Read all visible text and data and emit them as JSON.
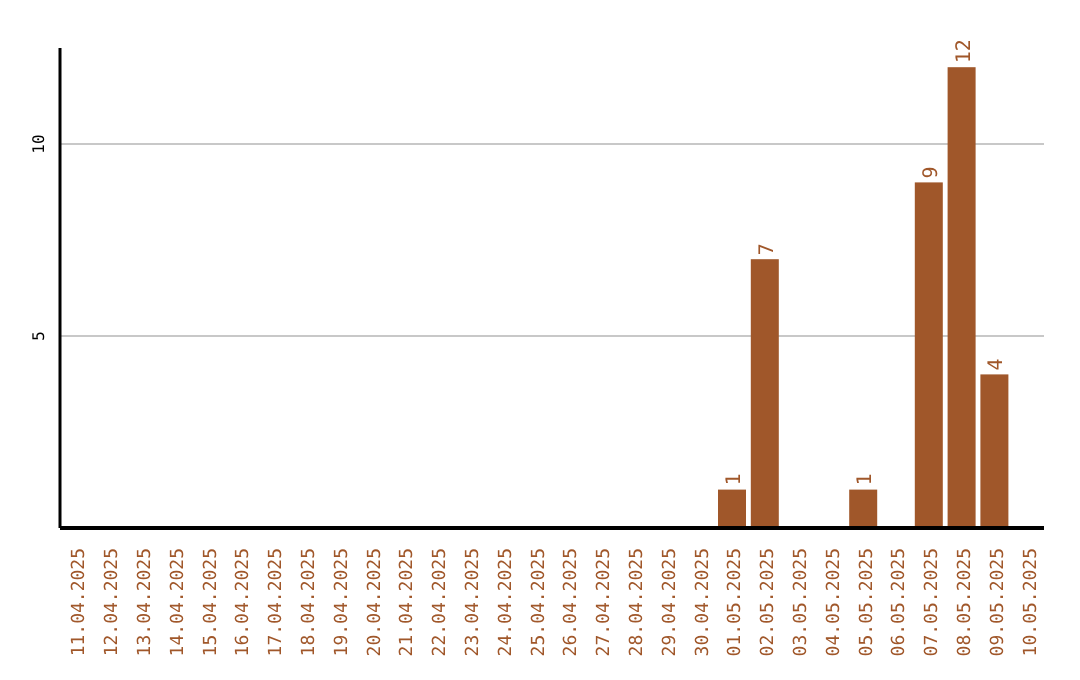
{
  "chart_data": {
    "type": "bar",
    "categories": [
      "11.04.2025",
      "12.04.2025",
      "13.04.2025",
      "14.04.2025",
      "15.04.2025",
      "16.04.2025",
      "17.04.2025",
      "18.04.2025",
      "19.04.2025",
      "20.04.2025",
      "21.04.2025",
      "22.04.2025",
      "23.04.2025",
      "24.04.2025",
      "25.04.2025",
      "26.04.2025",
      "27.04.2025",
      "28.04.2025",
      "29.04.2025",
      "30.04.2025",
      "01.05.2025",
      "02.05.2025",
      "03.05.2025",
      "04.05.2025",
      "05.05.2025",
      "06.05.2025",
      "07.05.2025",
      "08.05.2025",
      "09.05.2025",
      "10.05.2025"
    ],
    "values": [
      0,
      0,
      0,
      0,
      0,
      0,
      0,
      0,
      0,
      0,
      0,
      0,
      0,
      0,
      0,
      0,
      0,
      0,
      0,
      0,
      1,
      7,
      0,
      0,
      1,
      0,
      9,
      12,
      4,
      0
    ],
    "value_labels": [
      null,
      null,
      null,
      null,
      null,
      null,
      null,
      null,
      null,
      null,
      null,
      null,
      null,
      null,
      null,
      null,
      null,
      null,
      null,
      null,
      "1",
      "7",
      null,
      null,
      "1",
      null,
      "9",
      "12",
      "4",
      null
    ],
    "color": "#a0572a",
    "ylim": [
      0,
      12.5
    ],
    "yticks": [
      5,
      10
    ],
    "grid": "y"
  }
}
